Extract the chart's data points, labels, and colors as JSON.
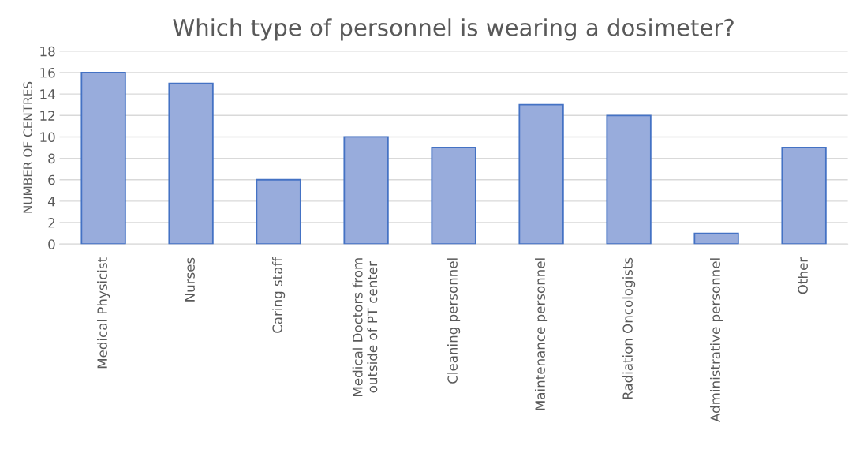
{
  "chart_data": {
    "type": "bar",
    "title": "Which type of personnel is wearing a dosimeter?",
    "ylabel": "NUMBER OF CENTRES",
    "categories": [
      "Medical Physicist",
      "Nurses",
      "Caring staff",
      "Medical Doctors from\noutside of PT center",
      "Cleaning personnel",
      "Maintenance personnel",
      "Radiation Oncologists",
      "Administrative personnel",
      "Other"
    ],
    "values": [
      16,
      15,
      6,
      10,
      9,
      13,
      12,
      1,
      9
    ],
    "color": "#98acdc",
    "ylim": [
      0,
      18
    ],
    "yticks": [
      0,
      2,
      4,
      6,
      8,
      10,
      12,
      14,
      16,
      18
    ],
    "grid": "y",
    "legend": false
  }
}
